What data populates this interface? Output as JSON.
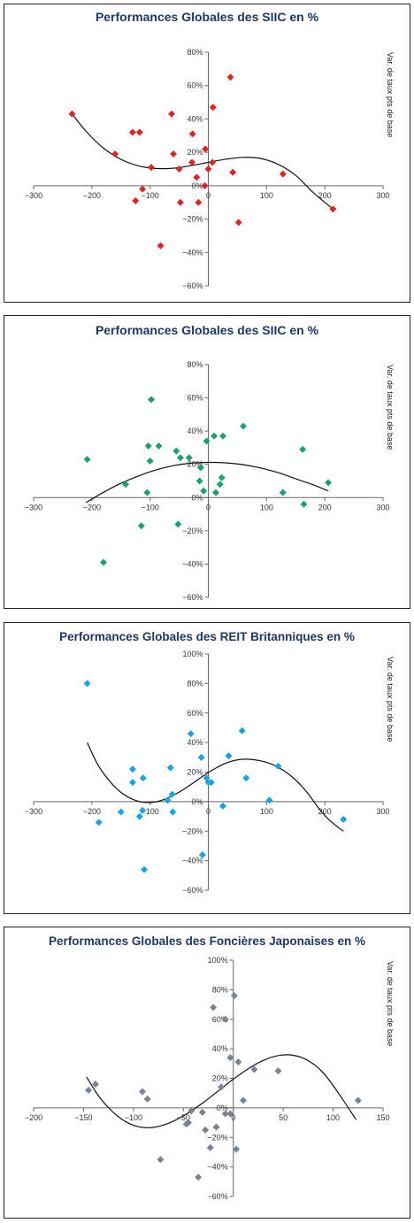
{
  "chart_data": [
    {
      "type": "scatter",
      "title": "Performances Globales des SIIC en %",
      "ylabel": "Var. de taux pts de base",
      "xlabel": "",
      "xlim": [
        -300,
        300
      ],
      "ylim": [
        -60,
        80
      ],
      "xticks": [
        -300,
        -200,
        -100,
        0,
        100,
        200,
        300
      ],
      "yticks": [
        80,
        60,
        40,
        20,
        0,
        -20,
        -40,
        -60
      ],
      "xtick_labels": [
        "−300",
        "−200",
        "−100",
        "0",
        "100",
        "200",
        "300"
      ],
      "ytick_labels": [
        "80%",
        "60%",
        "40%",
        "20%",
        "0%",
        "−20%",
        "−40%",
        "−60%"
      ],
      "marker_color": "#d9262a",
      "trendline": true,
      "points": [
        {
          "x": -234,
          "y": 43
        },
        {
          "x": -160,
          "y": 19
        },
        {
          "x": -130,
          "y": 32
        },
        {
          "x": -118,
          "y": 32
        },
        {
          "x": -113,
          "y": -2
        },
        {
          "x": -125,
          "y": -9
        },
        {
          "x": -98,
          "y": 11
        },
        {
          "x": -82,
          "y": -36
        },
        {
          "x": -63,
          "y": 43
        },
        {
          "x": -60,
          "y": 19
        },
        {
          "x": -50,
          "y": 10
        },
        {
          "x": -48,
          "y": -10
        },
        {
          "x": -27,
          "y": 31
        },
        {
          "x": -28,
          "y": 14
        },
        {
          "x": -20,
          "y": 5
        },
        {
          "x": -17,
          "y": -10
        },
        {
          "x": -6,
          "y": 0
        },
        {
          "x": -5,
          "y": 22
        },
        {
          "x": 0,
          "y": 10
        },
        {
          "x": 7,
          "y": 14
        },
        {
          "x": 8,
          "y": 47
        },
        {
          "x": 38,
          "y": 65
        },
        {
          "x": 42,
          "y": 8
        },
        {
          "x": 52,
          "y": -22
        },
        {
          "x": 128,
          "y": 7
        },
        {
          "x": 214,
          "y": -14
        }
      ],
      "trend": [
        {
          "x": -234,
          "y": 43
        },
        {
          "x": -210,
          "y": 32.6
        },
        {
          "x": -180,
          "y": 22.5
        },
        {
          "x": -150,
          "y": 15.8
        },
        {
          "x": -120,
          "y": 11.9
        },
        {
          "x": -90,
          "y": 10.3
        },
        {
          "x": -60,
          "y": 10.5
        },
        {
          "x": -30,
          "y": 12
        },
        {
          "x": 0,
          "y": 14
        },
        {
          "x": 30,
          "y": 15.9
        },
        {
          "x": 60,
          "y": 17
        },
        {
          "x": 90,
          "y": 16.3
        },
        {
          "x": 120,
          "y": 12.8
        },
        {
          "x": 150,
          "y": 6.2
        },
        {
          "x": 180,
          "y": -4.1
        },
        {
          "x": 214,
          "y": -14
        }
      ]
    },
    {
      "type": "scatter",
      "title": "Performances Globales des SIIC en %",
      "ylabel": "Var. de taux pts de base",
      "xlabel": "",
      "xlim": [
        -300,
        300
      ],
      "ylim": [
        -60,
        80
      ],
      "xticks": [
        -300,
        -200,
        -100,
        0,
        100,
        200,
        300
      ],
      "yticks": [
        80,
        60,
        40,
        20,
        0,
        -20,
        -40,
        -60
      ],
      "xtick_labels": [
        "−300",
        "−200",
        "−100",
        "0",
        "100",
        "200",
        "300"
      ],
      "ytick_labels": [
        "80%",
        "60%",
        "40%",
        "20%",
        "0%",
        "−20%",
        "−40%",
        "−60%"
      ],
      "marker_color": "#1f9e6e",
      "trendline": true,
      "points": [
        {
          "x": -208,
          "y": 23
        },
        {
          "x": -180,
          "y": -39
        },
        {
          "x": -142,
          "y": 8
        },
        {
          "x": -115,
          "y": -17
        },
        {
          "x": -105,
          "y": 3
        },
        {
          "x": -103,
          "y": 31
        },
        {
          "x": -100,
          "y": 22
        },
        {
          "x": -98,
          "y": 59
        },
        {
          "x": -85,
          "y": 31
        },
        {
          "x": -55,
          "y": 28
        },
        {
          "x": -52,
          "y": -16
        },
        {
          "x": -48,
          "y": 24
        },
        {
          "x": -33,
          "y": 24
        },
        {
          "x": -15,
          "y": 10
        },
        {
          "x": -13,
          "y": 18
        },
        {
          "x": -8,
          "y": 4
        },
        {
          "x": -3,
          "y": 34
        },
        {
          "x": 10,
          "y": 37
        },
        {
          "x": 13,
          "y": 3
        },
        {
          "x": 20,
          "y": 8
        },
        {
          "x": 23,
          "y": 12
        },
        {
          "x": 25,
          "y": 37
        },
        {
          "x": 60,
          "y": 43
        },
        {
          "x": 128,
          "y": 3
        },
        {
          "x": 162,
          "y": 29
        },
        {
          "x": 164,
          "y": -4
        },
        {
          "x": 206,
          "y": 9
        }
      ],
      "trend": [
        {
          "x": -210,
          "y": -3
        },
        {
          "x": -180,
          "y": 3.2
        },
        {
          "x": -150,
          "y": 8.6
        },
        {
          "x": -120,
          "y": 13
        },
        {
          "x": -90,
          "y": 16.6
        },
        {
          "x": -60,
          "y": 19.2
        },
        {
          "x": -30,
          "y": 20.7
        },
        {
          "x": 0,
          "y": 21.2
        },
        {
          "x": 30,
          "y": 20.9
        },
        {
          "x": 60,
          "y": 19.8
        },
        {
          "x": 90,
          "y": 17.8
        },
        {
          "x": 120,
          "y": 15
        },
        {
          "x": 150,
          "y": 11.3
        },
        {
          "x": 180,
          "y": 7.7
        },
        {
          "x": 206,
          "y": 4
        }
      ]
    },
    {
      "type": "scatter",
      "title": "Performances Globales des REIT Britanniques en %",
      "ylabel": "Var. de taux pts de base",
      "xlabel": "",
      "xlim": [
        -300,
        300
      ],
      "ylim": [
        -60,
        100
      ],
      "xticks": [
        -300,
        -200,
        -100,
        0,
        100,
        200,
        300
      ],
      "yticks": [
        100,
        80,
        60,
        40,
        20,
        0,
        -20,
        -40,
        -60
      ],
      "xtick_labels": [
        "−300",
        "−200",
        "−100",
        "0",
        "100",
        "200",
        "300"
      ],
      "ytick_labels": [
        "100%",
        "80%",
        "60%",
        "40%",
        "20%",
        "0%",
        "−20%",
        "−40%",
        "−60%"
      ],
      "marker_color": "#1aa3de",
      "trendline": true,
      "points": [
        {
          "x": -208,
          "y": 80
        },
        {
          "x": -188,
          "y": -14
        },
        {
          "x": -150,
          "y": -7
        },
        {
          "x": -130,
          "y": 22
        },
        {
          "x": -130,
          "y": 13
        },
        {
          "x": -118,
          "y": -10
        },
        {
          "x": -113,
          "y": -6
        },
        {
          "x": -112,
          "y": 16
        },
        {
          "x": -110,
          "y": -46
        },
        {
          "x": -70,
          "y": 1
        },
        {
          "x": -65,
          "y": 23
        },
        {
          "x": -62,
          "y": 5
        },
        {
          "x": -61,
          "y": -7
        },
        {
          "x": -30,
          "y": 46
        },
        {
          "x": -12,
          "y": 30
        },
        {
          "x": -10,
          "y": -36
        },
        {
          "x": -3,
          "y": 16
        },
        {
          "x": 0,
          "y": 13
        },
        {
          "x": 5,
          "y": 13
        },
        {
          "x": 25,
          "y": -3
        },
        {
          "x": 35,
          "y": 31
        },
        {
          "x": 58,
          "y": 48
        },
        {
          "x": 65,
          "y": 16
        },
        {
          "x": 105,
          "y": 1
        },
        {
          "x": 120,
          "y": 24
        },
        {
          "x": 232,
          "y": -12
        }
      ],
      "trend": [
        {
          "x": -208,
          "y": 40
        },
        {
          "x": -190,
          "y": 25.3
        },
        {
          "x": -170,
          "y": 14.1
        },
        {
          "x": -150,
          "y": 6.3
        },
        {
          "x": -130,
          "y": 1.6
        },
        {
          "x": -110,
          "y": -0.5
        },
        {
          "x": -90,
          "y": -0.1
        },
        {
          "x": -70,
          "y": 2.4
        },
        {
          "x": -50,
          "y": 6.5
        },
        {
          "x": -30,
          "y": 11.6
        },
        {
          "x": -10,
          "y": 17.1
        },
        {
          "x": 10,
          "y": 22.1
        },
        {
          "x": 30,
          "y": 26.1
        },
        {
          "x": 50,
          "y": 28.3
        },
        {
          "x": 70,
          "y": 28.7
        },
        {
          "x": 90,
          "y": 27.6
        },
        {
          "x": 110,
          "y": 25.2
        },
        {
          "x": 130,
          "y": 20.9
        },
        {
          "x": 150,
          "y": 14.6
        },
        {
          "x": 170,
          "y": 6.1
        },
        {
          "x": 190,
          "y": -4.7
        },
        {
          "x": 210,
          "y": -13.3
        },
        {
          "x": 232,
          "y": -20
        }
      ]
    },
    {
      "type": "scatter",
      "title": "Performances Globales des Foncières Japonaises en %",
      "ylabel": "Var. de taux pts de base",
      "xlabel": "",
      "xlim": [
        -200,
        150
      ],
      "ylim": [
        -60,
        100
      ],
      "xticks": [
        -200,
        -150,
        -100,
        -50,
        0,
        50,
        100,
        150
      ],
      "yticks": [
        100,
        80,
        60,
        40,
        20,
        0,
        -20,
        -40,
        -60
      ],
      "xtick_labels": [
        "−200",
        "−150",
        "−100",
        "−50",
        "0",
        "50",
        "100",
        "150"
      ],
      "ytick_labels": [
        "100%",
        "80%",
        "60%",
        "40%",
        "20%",
        "0%",
        "−20%",
        "−40%",
        "−60%"
      ],
      "marker_color": "#7a8391",
      "trendline": true,
      "points": [
        {
          "x": -145,
          "y": 12
        },
        {
          "x": -138,
          "y": 16
        },
        {
          "x": -91,
          "y": 11
        },
        {
          "x": -86,
          "y": 6
        },
        {
          "x": -73,
          "y": -35
        },
        {
          "x": -47,
          "y": -11
        },
        {
          "x": -45,
          "y": -10
        },
        {
          "x": -42,
          "y": -2
        },
        {
          "x": -35,
          "y": -47
        },
        {
          "x": -31,
          "y": -3
        },
        {
          "x": -28,
          "y": -15
        },
        {
          "x": -23,
          "y": -27
        },
        {
          "x": -20,
          "y": 68
        },
        {
          "x": -17,
          "y": -13
        },
        {
          "x": -12,
          "y": 14
        },
        {
          "x": -8,
          "y": 60
        },
        {
          "x": -8,
          "y": -4
        },
        {
          "x": -3,
          "y": 34
        },
        {
          "x": -3,
          "y": -4
        },
        {
          "x": 1,
          "y": 76
        },
        {
          "x": 3,
          "y": -28
        },
        {
          "x": 5,
          "y": 31
        },
        {
          "x": 10,
          "y": 5
        },
        {
          "x": 21,
          "y": 26
        },
        {
          "x": 45,
          "y": 25
        },
        {
          "x": 125,
          "y": 5
        }
      ],
      "trend": [
        {
          "x": -147,
          "y": 21
        },
        {
          "x": -135,
          "y": 8.1
        },
        {
          "x": -120,
          "y": -3.2
        },
        {
          "x": -105,
          "y": -10.4
        },
        {
          "x": -90,
          "y": -13.3
        },
        {
          "x": -75,
          "y": -12.6
        },
        {
          "x": -60,
          "y": -9
        },
        {
          "x": -45,
          "y": -3.4
        },
        {
          "x": -30,
          "y": 3.6
        },
        {
          "x": -15,
          "y": 11.5
        },
        {
          "x": 0,
          "y": 19.4
        },
        {
          "x": 15,
          "y": 26.5
        },
        {
          "x": 30,
          "y": 32.1
        },
        {
          "x": 45,
          "y": 35.4
        },
        {
          "x": 60,
          "y": 35.6
        },
        {
          "x": 75,
          "y": 32
        },
        {
          "x": 90,
          "y": 23.8
        },
        {
          "x": 105,
          "y": 10.3
        },
        {
          "x": 123,
          "y": -8
        }
      ]
    }
  ]
}
